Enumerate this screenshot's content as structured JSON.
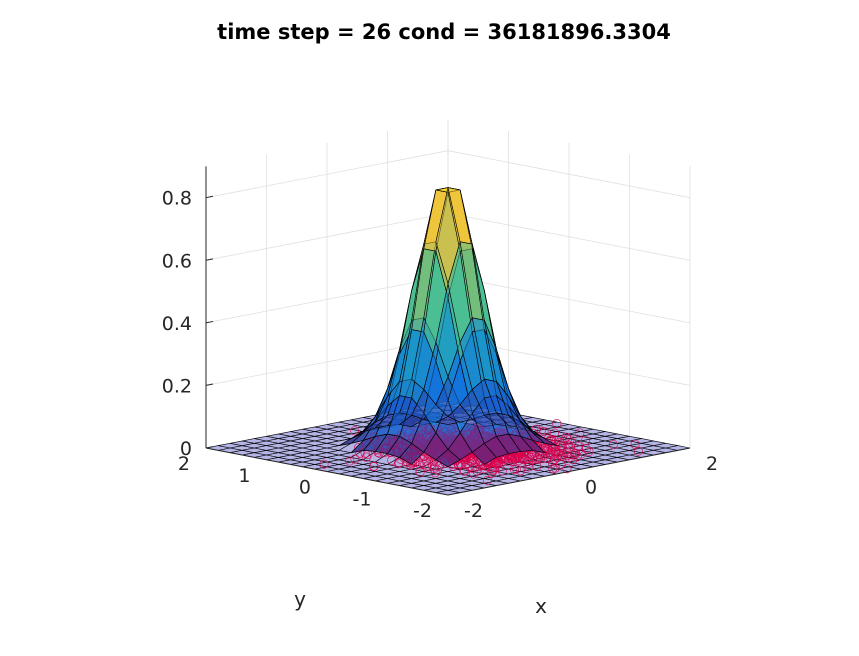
{
  "chart_data": {
    "type": "surface3d",
    "title": "time step = 26 cond = 36181896.3304",
    "xlabel": "x",
    "ylabel": "y",
    "zlabel": "",
    "xlim": [
      -2,
      2
    ],
    "ylim": [
      -2,
      2
    ],
    "zlim": [
      0,
      0.9
    ],
    "x_ticks": [
      "-2",
      "0",
      "2"
    ],
    "y_ticks": [
      "-2",
      "-1",
      "0",
      "1",
      "2"
    ],
    "z_ticks": [
      "0",
      "0.2",
      "0.4",
      "0.6",
      "0.8"
    ],
    "grid": true,
    "surface": {
      "grid_range": [
        -2,
        2
      ],
      "grid_points": 21,
      "peak_center": [
        0.1,
        0.1
      ],
      "peak_height": 0.87,
      "flat_value": 0,
      "colormap": "parula",
      "face_alpha": 0.55,
      "edge_color": "#000000"
    },
    "scatter": {
      "marker": "circle",
      "color": "#d9004c",
      "center": [
        0.2,
        -0.3
      ],
      "spread": 0.55,
      "count": 900
    }
  },
  "colors": {
    "background": "#ffffff",
    "axis": "#262626",
    "grid": "#e0e0e0",
    "flat_surface": "#b4b4e6",
    "scatter": "#d9004c"
  }
}
